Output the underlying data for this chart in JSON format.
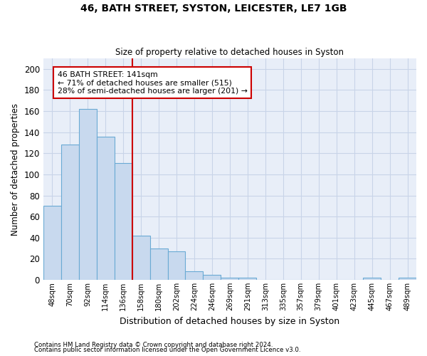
{
  "title": "46, BATH STREET, SYSTON, LEICESTER, LE7 1GB",
  "subtitle": "Size of property relative to detached houses in Syston",
  "xlabel": "Distribution of detached houses by size in Syston",
  "ylabel": "Number of detached properties",
  "bar_labels": [
    "48sqm",
    "70sqm",
    "92sqm",
    "114sqm",
    "136sqm",
    "158sqm",
    "180sqm",
    "202sqm",
    "224sqm",
    "246sqm",
    "269sqm",
    "291sqm",
    "313sqm",
    "335sqm",
    "357sqm",
    "379sqm",
    "401sqm",
    "423sqm",
    "445sqm",
    "467sqm",
    "489sqm"
  ],
  "bar_values": [
    70,
    128,
    162,
    136,
    111,
    42,
    30,
    27,
    8,
    5,
    2,
    2,
    0,
    0,
    0,
    0,
    0,
    0,
    2,
    0,
    2
  ],
  "bar_color": "#c8d9ee",
  "bar_edgecolor": "#6aaad4",
  "vline_color": "#cc0000",
  "annotation_line1": "46 BATH STREET: 141sqm",
  "annotation_line2": "← 71% of detached houses are smaller (515)",
  "annotation_line3": "28% of semi-detached houses are larger (201) →",
  "annotation_box_edgecolor": "#cc0000",
  "ylim": [
    0,
    210
  ],
  "yticks": [
    0,
    20,
    40,
    60,
    80,
    100,
    120,
    140,
    160,
    180,
    200
  ],
  "grid_color": "#c8d4e8",
  "background_color": "#e8eef8",
  "footer_line1": "Contains HM Land Registry data © Crown copyright and database right 2024.",
  "footer_line2": "Contains public sector information licensed under the Open Government Licence v3.0."
}
